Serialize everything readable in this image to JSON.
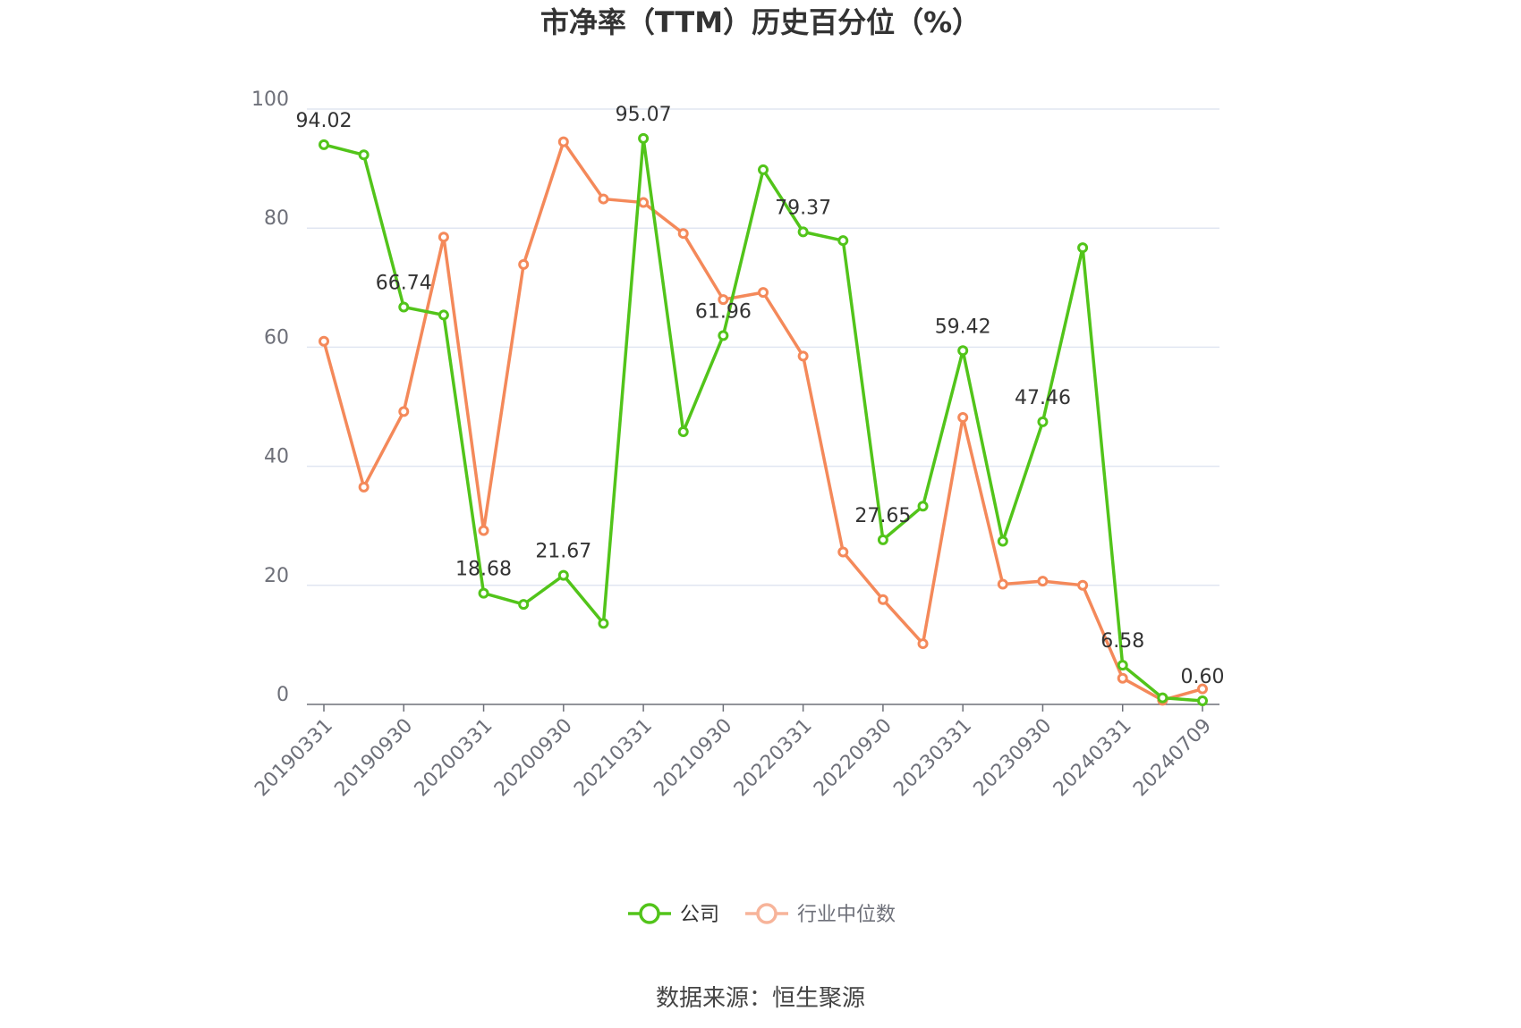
{
  "chart_data": {
    "type": "line",
    "title": "市净率（TTM）历史百分位（%）",
    "xlabel": "",
    "ylabel": "",
    "ylim": [
      0,
      100
    ],
    "yticks": [
      0,
      20,
      40,
      60,
      80,
      100
    ],
    "grid": true,
    "legend_position": "bottom",
    "categories": [
      "20190331",
      "",
      "20190930",
      "",
      "20200331",
      "",
      "20200930",
      "",
      "20210331",
      "",
      "20210930",
      "",
      "20220331",
      "",
      "20220930",
      "",
      "20230331",
      "",
      "20230930",
      "",
      "20240331",
      "",
      "20240709"
    ],
    "series": [
      {
        "name": "公司",
        "color": "#52c41a",
        "values": [
          94.02,
          92.3,
          66.74,
          65.4,
          18.68,
          16.8,
          21.67,
          13.6,
          95.07,
          45.8,
          61.96,
          89.8,
          79.37,
          77.9,
          27.65,
          33.3,
          59.42,
          27.4,
          47.46,
          76.7,
          6.58,
          1.1,
          0.6
        ],
        "labels": [
          "94.02",
          null,
          "66.74",
          null,
          "18.68",
          null,
          "21.67",
          null,
          "95.07",
          null,
          "61.96",
          null,
          "79.37",
          null,
          "27.65",
          null,
          "59.42",
          null,
          "47.46",
          null,
          "6.58",
          null,
          "0.60"
        ]
      },
      {
        "name": "行业中位数",
        "color": "#f4895a",
        "values": [
          61.0,
          36.5,
          49.2,
          78.5,
          29.2,
          73.9,
          94.5,
          84.9,
          84.3,
          79.1,
          68.0,
          69.2,
          58.5,
          25.6,
          17.6,
          10.2,
          48.2,
          20.2,
          20.7,
          20.0,
          4.4,
          0.7,
          2.6
        ]
      }
    ]
  },
  "footer": {
    "source": "数据来源：恒生聚源"
  }
}
